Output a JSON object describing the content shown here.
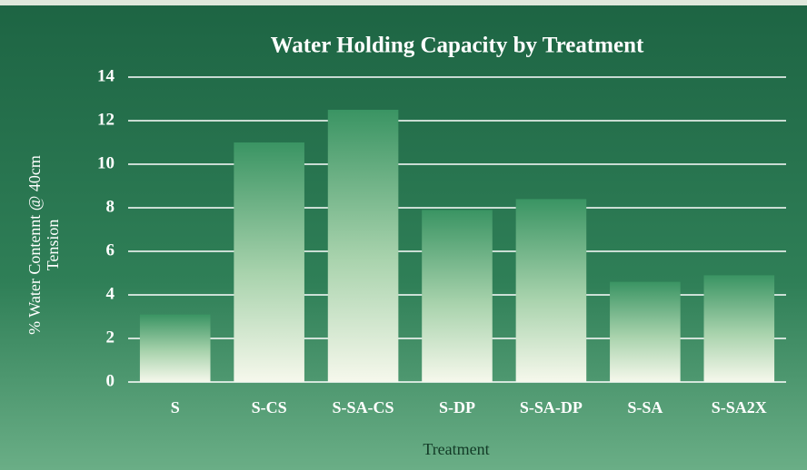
{
  "chart_data": {
    "type": "bar",
    "title": "Water Holding Capacity by Treatment",
    "x_label": "Treatment",
    "y_label": [
      "% Water Contennt @ 40cm",
      "Tension"
    ],
    "categories": [
      "S",
      "S-CS",
      "S-SA-CS",
      "S-DP",
      "S-SA-DP",
      "S-SA",
      "S-SA2X"
    ],
    "values": [
      3.1,
      11.0,
      12.5,
      7.9,
      8.4,
      4.6,
      4.9
    ],
    "color": "#3a9463",
    "ylim": [
      0,
      14
    ],
    "yticks": [
      0,
      2,
      4,
      6,
      8,
      10,
      12,
      14
    ],
    "grid": true
  }
}
